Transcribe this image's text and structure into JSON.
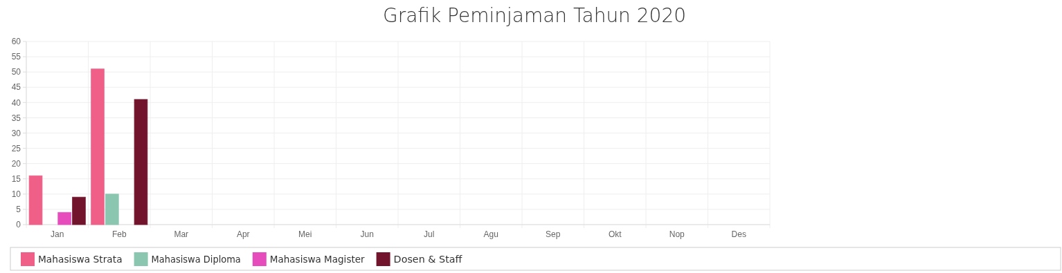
{
  "chart_data": {
    "type": "bar",
    "title": "Grafik Peminjaman Tahun 2020",
    "categories": [
      "Jan",
      "Feb",
      "Mar",
      "Apr",
      "Mei",
      "Jun",
      "Jul",
      "Agu",
      "Sep",
      "Okt",
      "Nop",
      "Des"
    ],
    "series": [
      {
        "name": "Mahasiswa Strata",
        "color": "#ef5f87",
        "values": [
          16,
          51,
          0,
          0,
          0,
          0,
          0,
          0,
          0,
          0,
          0,
          0
        ]
      },
      {
        "name": "Mahasiswa Diploma",
        "color": "#8bc6b0",
        "values": [
          0,
          10,
          0,
          0,
          0,
          0,
          0,
          0,
          0,
          0,
          0,
          0
        ]
      },
      {
        "name": "Mahasiswa Magister",
        "color": "#e74cbd",
        "values": [
          4,
          0,
          0,
          0,
          0,
          0,
          0,
          0,
          0,
          0,
          0,
          0
        ]
      },
      {
        "name": "Dosen & Staff",
        "color": "#72142c",
        "values": [
          9,
          41,
          0,
          0,
          0,
          0,
          0,
          0,
          0,
          0,
          0,
          0
        ]
      }
    ],
    "ylim": [
      0,
      60
    ],
    "yticks": [
      0,
      5,
      10,
      15,
      20,
      25,
      30,
      35,
      40,
      45,
      50,
      55,
      60
    ],
    "grid": true,
    "legend": "bottom"
  }
}
